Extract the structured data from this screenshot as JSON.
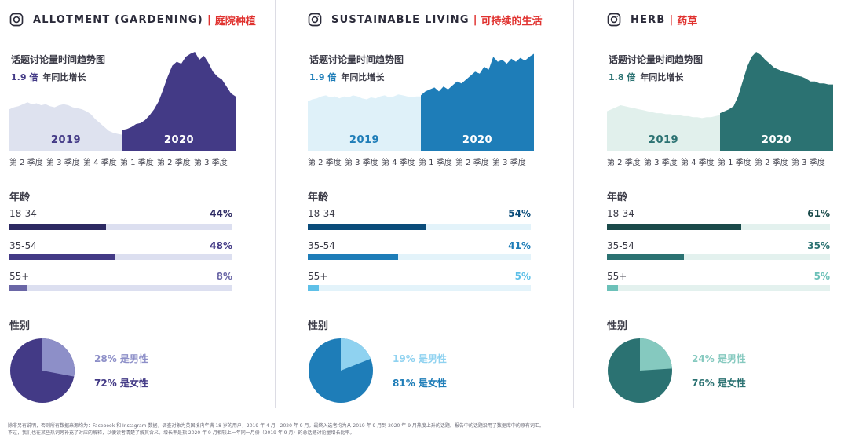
{
  "chart_data": [
    {
      "type": "area",
      "title_en": "ALLOTMENT (GARDENING)",
      "title_cn": "庭院种植",
      "subtitle": "话题讨论量时间趋势图",
      "growth_value": "1.9 倍",
      "growth_label": "年同比增长",
      "years": [
        "2019",
        "2020"
      ],
      "x_tick_labels": [
        "第 2 季度",
        "第 3 季度",
        "第 4 季度",
        "第 1 季度",
        "第 2 季度",
        "第 3 季度"
      ],
      "series_2019": [
        42,
        44,
        45,
        47,
        49,
        47,
        48,
        46,
        47,
        45,
        44,
        46,
        47,
        46,
        44,
        43,
        42,
        40,
        37,
        32,
        28,
        24,
        20,
        18,
        17,
        16
      ],
      "series_2020": [
        21,
        22,
        24,
        27,
        28,
        31,
        36,
        42,
        50,
        62,
        75,
        86,
        90,
        88,
        95,
        98,
        100,
        92,
        96,
        89,
        80,
        75,
        72,
        65,
        58,
        55
      ],
      "age_title": "年龄",
      "age": [
        {
          "label": "18-34",
          "value": 44,
          "text": "44%"
        },
        {
          "label": "35-54",
          "value": 48,
          "text": "48%"
        },
        {
          "label": "55+",
          "value": 8,
          "text": "8%"
        }
      ],
      "gender_title": "性别",
      "male_pct": 28,
      "female_pct": 72,
      "male_text": "28% 是男性",
      "female_text": "72% 是女性",
      "colors": {
        "dark": "#2c2962",
        "mid": "#433a86",
        "light": "#6a66a6",
        "pale": "#dcdff0",
        "pale_area": "#dee2ef",
        "pie_light": "#8d8fc8"
      }
    },
    {
      "type": "area",
      "title_en": "SUSTAINABLE LIVING",
      "title_cn": "可持续的生活",
      "subtitle": "话题讨论量时间趋势图",
      "growth_value": "1.9 倍",
      "growth_label": "年同比增长",
      "years": [
        "2019",
        "2020"
      ],
      "x_tick_labels": [
        "第 2 季度",
        "第 3 季度",
        "第 4 季度",
        "第 1 季度",
        "第 2 季度",
        "第 3 季度"
      ],
      "series_2019": [
        50,
        52,
        53,
        55,
        56,
        54,
        55,
        53,
        55,
        54,
        56,
        55,
        53,
        52,
        54,
        53,
        55,
        56,
        54,
        55,
        57,
        56,
        55,
        54,
        55,
        55
      ],
      "series_2020": [
        56,
        60,
        62,
        64,
        60,
        65,
        62,
        66,
        70,
        68,
        72,
        76,
        80,
        78,
        85,
        82,
        95,
        90,
        92,
        88,
        93,
        90,
        94,
        91,
        95,
        98
      ],
      "age_title": "年龄",
      "age": [
        {
          "label": "18-34",
          "value": 54,
          "text": "54%"
        },
        {
          "label": "35-54",
          "value": 41,
          "text": "41%"
        },
        {
          "label": "55+",
          "value": 5,
          "text": "5%"
        }
      ],
      "gender_title": "性别",
      "male_pct": 19,
      "female_pct": 81,
      "male_text": "19% 是男性",
      "female_text": "81% 是女性",
      "colors": {
        "dark": "#0a4c7a",
        "mid": "#1e7db8",
        "light": "#5ec0e8",
        "pale": "#e3f3fa",
        "pale_area": "#dff1f9",
        "pie_light": "#8fd2f0"
      }
    },
    {
      "type": "area",
      "title_en": "HERB",
      "title_cn": "药草",
      "subtitle": "话题讨论量时间趋势图",
      "growth_value": "1.8 倍",
      "growth_label": "年同比增长",
      "years": [
        "2019",
        "2020"
      ],
      "x_tick_labels": [
        "第 2 季度",
        "第 3 季度",
        "第 4 季度",
        "第 1 季度",
        "第 2 季度",
        "第 3 季度"
      ],
      "series_2019": [
        40,
        42,
        44,
        46,
        45,
        44,
        43,
        42,
        41,
        40,
        39,
        38,
        38,
        37,
        37,
        36,
        36,
        35,
        35,
        34,
        34,
        33,
        34,
        34,
        35,
        36
      ],
      "series_2020": [
        38,
        40,
        42,
        45,
        55,
        70,
        85,
        95,
        100,
        97,
        92,
        88,
        84,
        82,
        80,
        79,
        78,
        76,
        75,
        73,
        70,
        70,
        68,
        68,
        67,
        67
      ],
      "age_title": "年龄",
      "age": [
        {
          "label": "18-34",
          "value": 61,
          "text": "61%"
        },
        {
          "label": "35-54",
          "value": 35,
          "text": "35%"
        },
        {
          "label": "55+",
          "value": 5,
          "text": "5%"
        }
      ],
      "gender_title": "性别",
      "male_pct": 24,
      "female_pct": 76,
      "male_text": "24% 是男性",
      "female_text": "76% 是女性",
      "colors": {
        "dark": "#1a4a4a",
        "mid": "#2b7272",
        "light": "#6cc1b9",
        "pale": "#e3f1ee",
        "pale_area": "#e1f0ec",
        "pie_light": "#85c9bf"
      }
    }
  ],
  "footnote": {
    "line1": "除非另有说明，否则所有数据来源均为：Facebook 和 Instagram 数据，调查对象为英国境内年满 18 岁的用户，2019 年 4 月 - 2020 年 9 月。最终入选者均为从 2019 年 9 月到 2020 年 9 月热度上升的话题。报告中的话题沿用了数据库中的原有词汇。",
    "line2": "不过，我们也在某些热词旁补充了对应的解释，以便读者清楚了解其含义。增长率是指 2020 年 9 月相较上一年同一月份（2019 年 9 月）的总话题讨论量增长比率。"
  }
}
